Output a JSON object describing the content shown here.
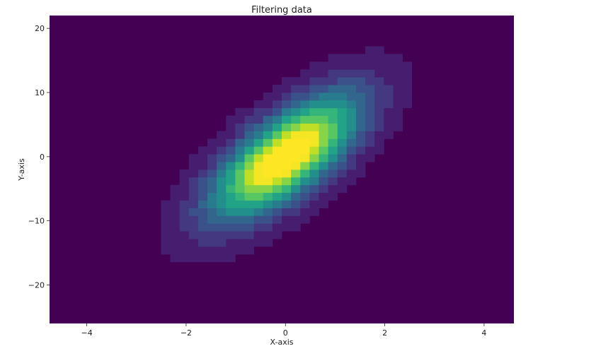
{
  "chart_data": {
    "type": "heatmap",
    "title": "Filtering data",
    "xlabel": "X-axis",
    "ylabel": "Y-axis",
    "xlim": [
      -4.75,
      4.6
    ],
    "ylim": [
      -26,
      22
    ],
    "xticks": [
      -4,
      -2,
      0,
      2,
      4
    ],
    "yticks": [
      -20,
      -10,
      0,
      10,
      20
    ],
    "xtick_labels": [
      "−4",
      "−2",
      "0",
      "2",
      "4"
    ],
    "ytick_labels": [
      "−20",
      "−10",
      "0",
      "10",
      "20"
    ],
    "bins": {
      "x_edges_range": [
        -4.75,
        4.6
      ],
      "x_count": 50,
      "y_edges_range": [
        -26,
        22
      ],
      "y_count": 40
    },
    "density_model": {
      "distribution": "bivariate-normal",
      "mean": [
        0,
        0
      ],
      "std_x": 1.0,
      "std_y": 6.5,
      "correlation": 0.7
    },
    "colormap": "viridis",
    "grid": false,
    "background_color": "#440154"
  }
}
